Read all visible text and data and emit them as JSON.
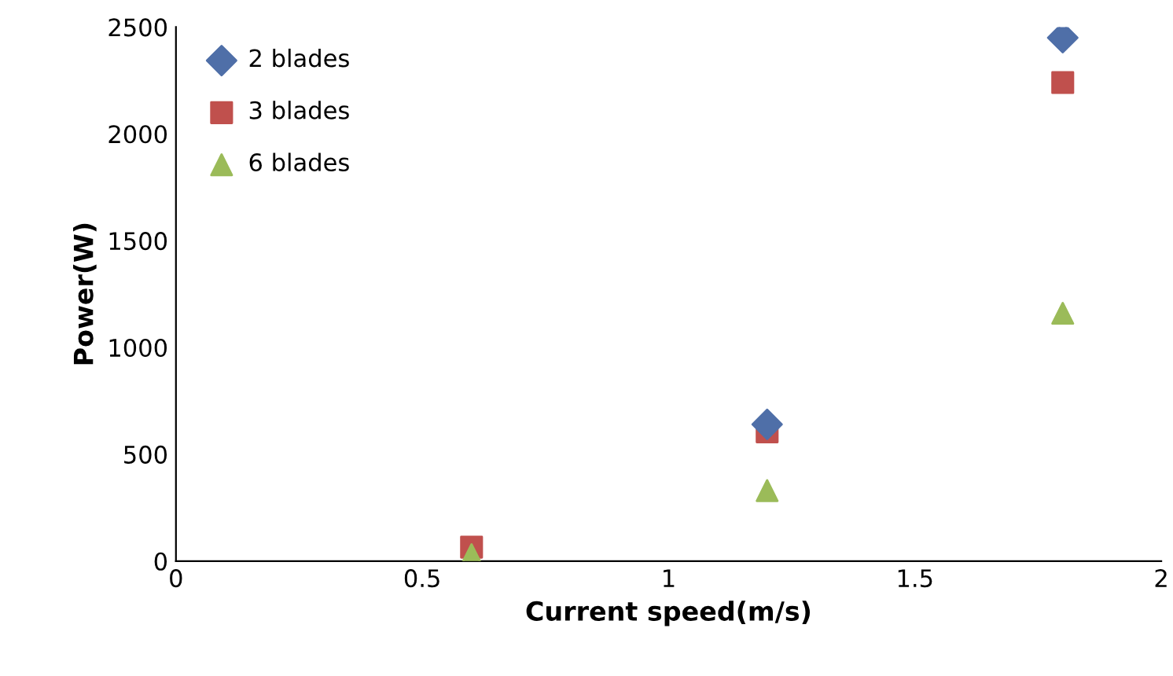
{
  "chart_data": {
    "type": "scatter",
    "xlabel": "Current speed(m/s)",
    "ylabel": "Power(W)",
    "x": [
      0.6,
      1.2,
      1.8
    ],
    "series": [
      {
        "name": "2 blades",
        "color": "#4f6fa8",
        "marker": "diamond",
        "values": [
          null,
          640,
          2450
        ]
      },
      {
        "name": "3 blades",
        "color": "#c0504d",
        "marker": "square",
        "values": [
          65,
          605,
          2240
        ]
      },
      {
        "name": "6 blades",
        "color": "#9bbb59",
        "marker": "triangle",
        "values": [
          30,
          330,
          1160
        ]
      }
    ],
    "xlim": [
      0,
      2
    ],
    "xticks": [
      0,
      0.5,
      1,
      1.5,
      2
    ],
    "ylim": [
      0,
      2500
    ],
    "yticks": [
      0,
      500,
      1000,
      1500,
      2000,
      2500
    ],
    "grid": false,
    "legend": "top left"
  }
}
